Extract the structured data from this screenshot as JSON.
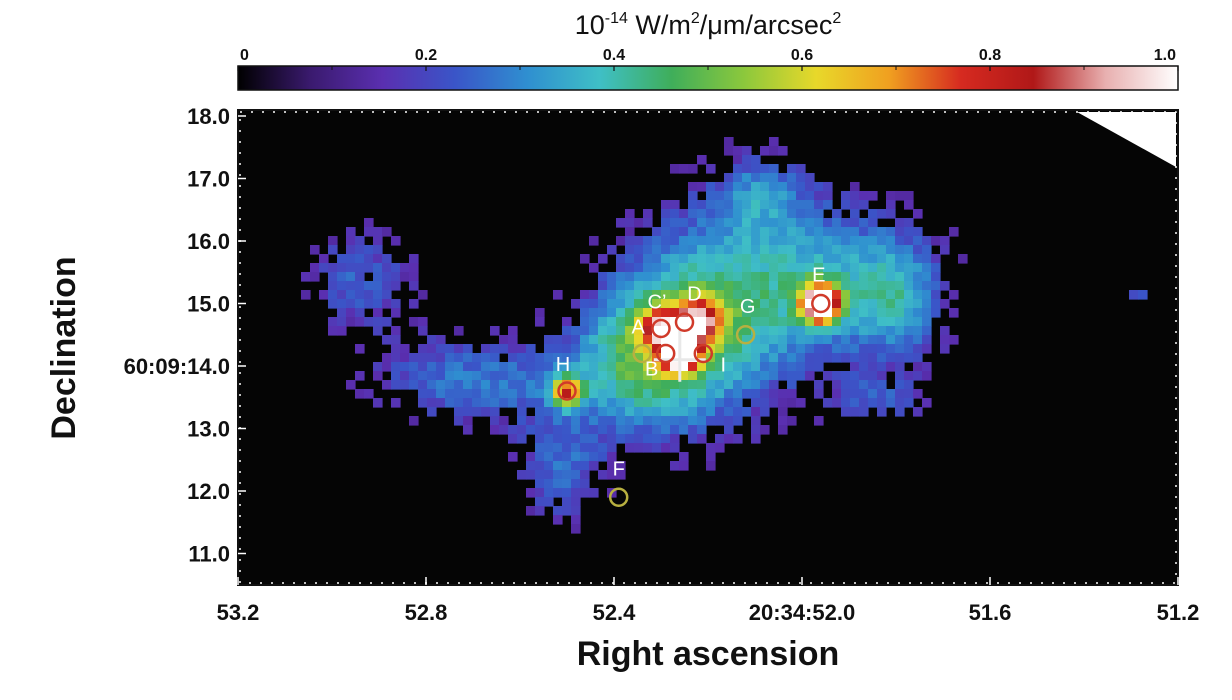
{
  "chart_data": {
    "type": "heatmap",
    "title": "",
    "colorbar": {
      "unit_base": "10",
      "unit_exp": "-14",
      "unit_mid": " W/m",
      "unit_exp2": "2",
      "unit_rest": "/μm/arcsec",
      "unit_exp3": "2",
      "ticks": [
        "0",
        "0.2",
        "0.4",
        "0.6",
        "0.8",
        "1.0"
      ],
      "tick_values": [
        0,
        0.2,
        0.4,
        0.6,
        0.8,
        1.0
      ],
      "range": [
        0,
        1.0
      ],
      "colors": [
        "#000000",
        "#3a1a6e",
        "#5a2fb0",
        "#3a55c8",
        "#2f8fd0",
        "#3fbfc6",
        "#3fae5a",
        "#8cc83c",
        "#e8d82a",
        "#f0a020",
        "#d62a20",
        "#b01818",
        "#e8b0b0",
        "#ffffff"
      ]
    },
    "xlabel": "Right ascension",
    "ylabel": "Declination",
    "xlim": [
      53.2,
      51.2
    ],
    "ylim": [
      10.5,
      18.1
    ],
    "x_ticks": [
      "53.2",
      "52.8",
      "52.4",
      "20:34:52.0",
      "51.6",
      "51.2"
    ],
    "x_tick_values": [
      53.2,
      52.8,
      52.4,
      52.0,
      51.6,
      51.2
    ],
    "y_ticks": [
      "18.0",
      "17.0",
      "16.0",
      "15.0",
      "60:09:14.0",
      "13.0",
      "12.0",
      "11.0"
    ],
    "y_tick_values": [
      18.0,
      17.0,
      16.0,
      15.0,
      14.0,
      13.0,
      12.0,
      11.0
    ],
    "emission_peaks": [
      {
        "ra": 51.96,
        "dec": 15.0,
        "intensity": 1.0,
        "size": 0.55
      },
      {
        "ra": 52.26,
        "dec": 14.2,
        "intensity": 0.9,
        "size": 0.5
      },
      {
        "ra": 52.22,
        "dec": 14.7,
        "intensity": 0.55,
        "size": 0.7
      },
      {
        "ra": 52.5,
        "dec": 13.6,
        "intensity": 0.55,
        "size": 0.45
      },
      {
        "ra": 52.3,
        "dec": 14.6,
        "intensity": 0.5,
        "size": 0.6
      }
    ],
    "sources": [
      {
        "label": "A",
        "ra": 52.34,
        "dec": 14.2,
        "ring": "#b8b040"
      },
      {
        "label": "B",
        "ra": 52.29,
        "dec": 14.2,
        "ring": "#d03a2a"
      },
      {
        "label": "C’",
        "ra": 52.3,
        "dec": 14.6,
        "ring": "#d03a2a"
      },
      {
        "label": "D",
        "ra": 52.25,
        "dec": 14.7,
        "ring": "#d03a2a"
      },
      {
        "label": "E",
        "ra": 51.96,
        "dec": 15.0,
        "ring": "#d03a2a"
      },
      {
        "label": "F",
        "ra": 52.39,
        "dec": 11.9,
        "ring": "#b8b040"
      },
      {
        "label": "G",
        "ra": 52.12,
        "dec": 14.5,
        "ring": "#b8b040"
      },
      {
        "label": "H",
        "ra": 52.5,
        "dec": 13.6,
        "ring": "#d03a2a"
      },
      {
        "label": "I",
        "ra": 52.21,
        "dec": 14.2,
        "ring": "#d03a2a"
      }
    ],
    "crosshair": {
      "ra": 52.26,
      "dec": 14.1,
      "color": "#e8e8e8"
    },
    "grid": false
  }
}
